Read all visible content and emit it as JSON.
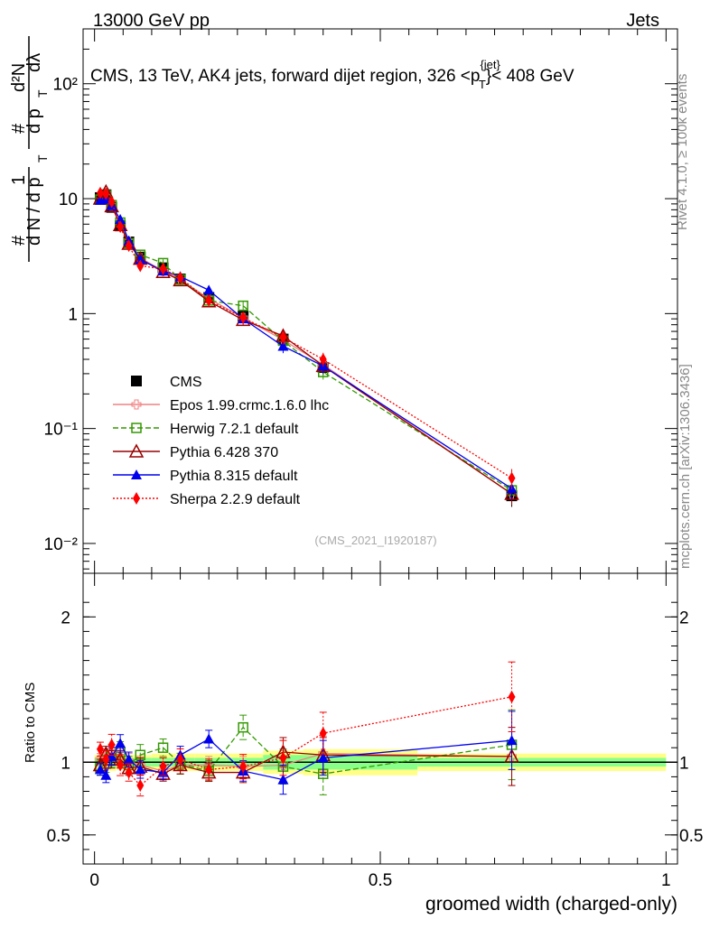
{
  "header": {
    "left": "13000 GeV pp",
    "right": "Jets"
  },
  "plot_title": "CMS, 13 TeV, AK4 jets, forward dijet region, 326 <p",
  "plot_title_sup": "{jet}",
  "plot_title_sub": "T",
  "plot_title_end": "}< 408 GeV",
  "side_labels": {
    "rivet": "Rivet 4.1.0, ≥ 100k events",
    "mcplots": "mcplots.cern.ch [arXiv:1306.3436]"
  },
  "watermark": "(CMS_2021_I1920187)",
  "ylabel_upper": {
    "hash1": "#",
    "one": "1",
    "dN": "d N / d p",
    "T1": "T",
    "hash2": "#",
    "d2N": "d²N",
    "dpdl": "d p",
    "T2": "T",
    "dl": "dλ"
  },
  "ylabel_lower": "Ratio to CMS",
  "xlabel": "groomed width (charged-only)",
  "colors": {
    "cms": "#000000",
    "epos": "#f08080",
    "herwig": "#339900",
    "pythia6": "#990000",
    "pythia8": "#0000ee",
    "sherpa": "#ff0000",
    "band_inner": "#88ff88",
    "band_outer": "#ffff88"
  },
  "chart_data": {
    "type": "line",
    "x": [
      0.01,
      0.02,
      0.03,
      0.045,
      0.06,
      0.08,
      0.12,
      0.15,
      0.2,
      0.26,
      0.33,
      0.4,
      0.73
    ],
    "xlim": [
      -0.02,
      1.02
    ],
    "upper": {
      "yscale": "log",
      "ylim": [
        0.0055,
        300
      ],
      "ytick_labels": [
        "10⁻²",
        "10⁻¹",
        "1",
        "10",
        "10²"
      ],
      "yticks": [
        0.01,
        0.1,
        1,
        10,
        100
      ]
    },
    "lower": {
      "ylim": [
        0.3,
        2.3
      ],
      "ytick_labels": [
        "0.5",
        "1",
        "2"
      ],
      "yticks": [
        0.5,
        1,
        2
      ]
    },
    "xtick_labels": [
      "0",
      "0.5",
      "1"
    ],
    "xticks": [
      0,
      0.5,
      1
    ],
    "series": [
      {
        "key": "cms",
        "name": "CMS",
        "marker": "square-filled",
        "values": [
          10.2,
          10.8,
          8.4,
          5.8,
          4.2,
          3.1,
          2.5,
          2.0,
          1.38,
          0.95,
          0.6,
          0.34,
          0.026
        ],
        "ratio": [
          1,
          1,
          1,
          1,
          1,
          1,
          1,
          1,
          1,
          1,
          1,
          1,
          1
        ]
      },
      {
        "key": "epos",
        "name": "Epos 1.99.crmc.1.6.0 lhc",
        "marker": "cross-open",
        "dash": "",
        "values": [
          10.4,
          11.2,
          8.7,
          6.0,
          4.25,
          3.05,
          2.35,
          1.97,
          1.35,
          0.92,
          0.59,
          0.36,
          0.027
        ],
        "ratio": [
          1.02,
          1.04,
          1.04,
          1.03,
          1.01,
          0.98,
          0.94,
          0.98,
          0.98,
          0.97,
          0.98,
          1.06,
          1.04
        ]
      },
      {
        "key": "herwig",
        "name": "Herwig 7.2.1 default",
        "marker": "square-open",
        "dash": "6,3",
        "values": [
          9.8,
          10.7,
          8.8,
          6.2,
          4.1,
          3.25,
          2.75,
          1.98,
          1.3,
          1.17,
          0.58,
          0.31,
          0.029
        ],
        "ratio": [
          0.96,
          0.99,
          1.05,
          1.07,
          0.98,
          1.05,
          1.1,
          0.99,
          0.94,
          1.24,
          0.97,
          0.92,
          1.12
        ]
      },
      {
        "key": "pythia6",
        "name": "Pythia 6.428 370",
        "marker": "triangle-open",
        "dash": "",
        "values": [
          10.0,
          11.5,
          8.6,
          5.9,
          4.05,
          3.0,
          2.3,
          1.95,
          1.28,
          0.88,
          0.64,
          0.35,
          0.027
        ],
        "ratio": [
          0.98,
          1.06,
          1.02,
          1.02,
          0.96,
          0.97,
          0.92,
          0.98,
          0.93,
          0.93,
          1.07,
          1.05,
          1.04
        ]
      },
      {
        "key": "pythia8",
        "name": "Pythia 8.315 default",
        "marker": "triangle-filled",
        "dash": "",
        "values": [
          9.7,
          9.9,
          8.7,
          6.6,
          4.3,
          2.95,
          2.35,
          2.1,
          1.6,
          0.9,
          0.52,
          0.35,
          0.03
        ],
        "ratio": [
          0.95,
          0.91,
          1.04,
          1.13,
          1.02,
          0.95,
          0.93,
          1.05,
          1.16,
          0.94,
          0.88,
          1.03,
          1.15
        ]
      },
      {
        "key": "sherpa",
        "name": "Sherpa 2.2.9 default",
        "marker": "diamond-filled",
        "dash": "2,2",
        "values": [
          11.2,
          11.0,
          9.4,
          5.7,
          3.9,
          2.6,
          2.45,
          2.05,
          1.3,
          0.92,
          0.62,
          0.4,
          0.037
        ],
        "ratio": [
          1.09,
          1.02,
          1.12,
          0.98,
          0.93,
          0.84,
          0.97,
          1.02,
          0.95,
          0.97,
          1.03,
          1.2,
          1.45
        ]
      }
    ]
  }
}
